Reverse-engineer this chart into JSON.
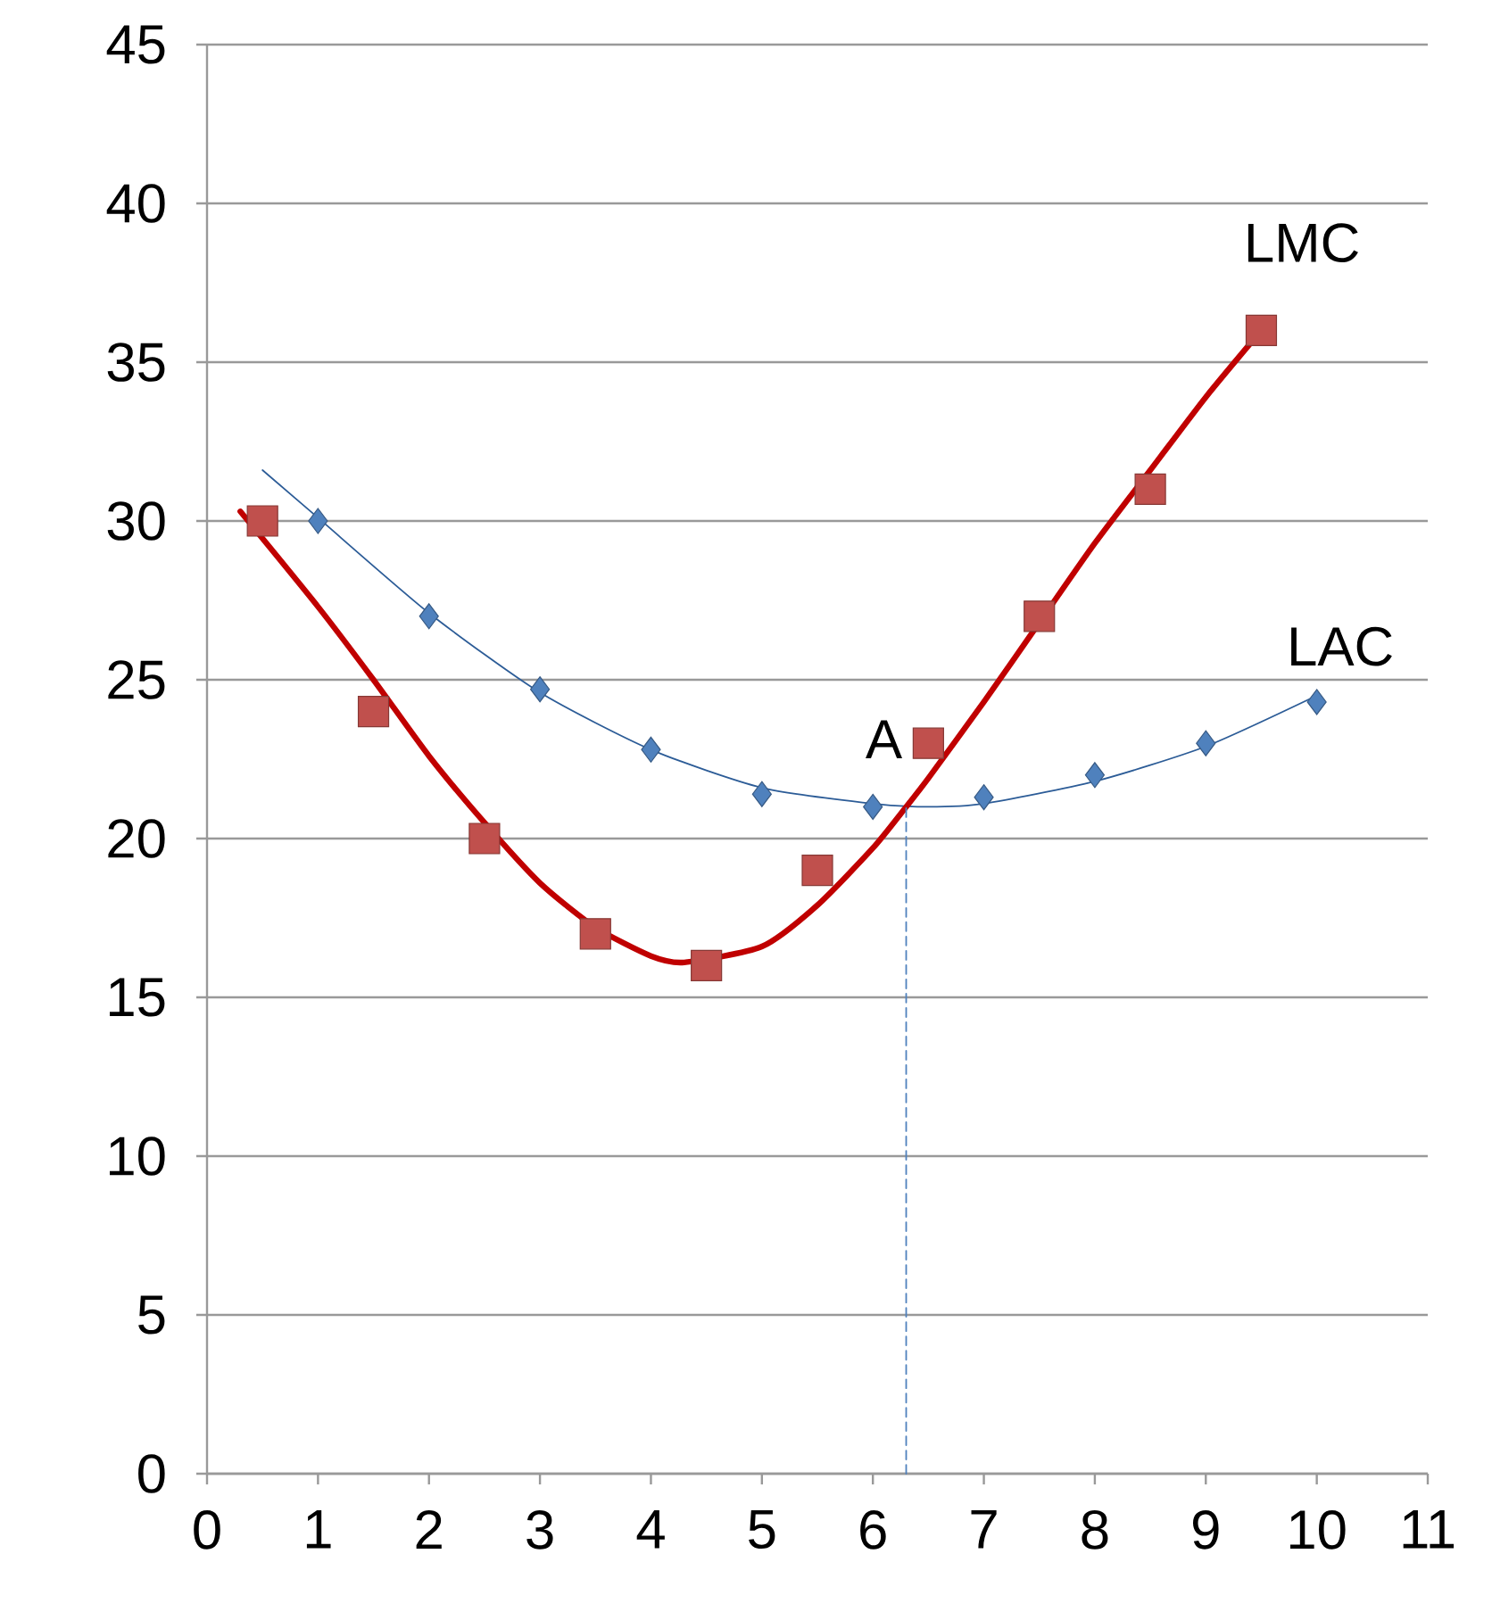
{
  "chart_data": {
    "type": "scatter",
    "xlim": [
      0,
      11
    ],
    "ylim": [
      0,
      45
    ],
    "xticks": [
      0,
      1,
      2,
      3,
      4,
      5,
      6,
      7,
      8,
      9,
      10,
      11
    ],
    "yticks": [
      0,
      5,
      10,
      15,
      20,
      25,
      30,
      35,
      40,
      45
    ],
    "grid": "y",
    "annotations": [
      {
        "text": "A",
        "x": 6.3,
        "y": 21
      }
    ],
    "series": [
      {
        "type": "line",
        "color": "#2c5c97",
        "x": [
          0.5,
          1,
          2,
          3,
          4,
          5,
          6,
          6.5,
          7,
          8,
          9,
          10
        ],
        "values": [
          31.6,
          30.1,
          27.1,
          24.6,
          22.8,
          21.6,
          21.1,
          21.0,
          21.1,
          21.8,
          22.9,
          24.5
        ]
      },
      {
        "type": "line",
        "color": "#c00000",
        "x": [
          0.3,
          1,
          1.5,
          2,
          2.5,
          3,
          3.5,
          4,
          4.3,
          5,
          5.5,
          6,
          6.3,
          6.5,
          7,
          7.5,
          8,
          8.5,
          9,
          9.5
        ],
        "values": [
          30.3,
          27.3,
          25,
          22.6,
          20.5,
          18.6,
          17.2,
          16.3,
          16.1,
          16.6,
          17.9,
          19.7,
          21,
          21.9,
          24.3,
          26.8,
          29.3,
          31.6,
          33.9,
          36
        ]
      },
      {
        "type": "line",
        "color": "#4f81bd",
        "line_style": "dashed",
        "x": [
          6.3,
          6.3
        ],
        "values": [
          0,
          21
        ]
      },
      {
        "name": "LAC",
        "marker": "diamond",
        "color": "#4f81bd",
        "x": [
          1,
          2,
          3,
          4,
          5,
          6,
          7,
          8,
          9,
          10
        ],
        "values": [
          30,
          27,
          24.7,
          22.8,
          21.4,
          21,
          21.3,
          22,
          23,
          24.3
        ]
      },
      {
        "name": "LMC",
        "marker": "square",
        "color": "#c0504d",
        "x": [
          0.5,
          1.5,
          2.5,
          3.5,
          4.5,
          5.5,
          6.5,
          7.5,
          8.5,
          9.5
        ],
        "values": [
          30,
          24,
          20,
          17,
          16,
          19,
          23,
          27,
          31,
          36
        ]
      }
    ]
  }
}
